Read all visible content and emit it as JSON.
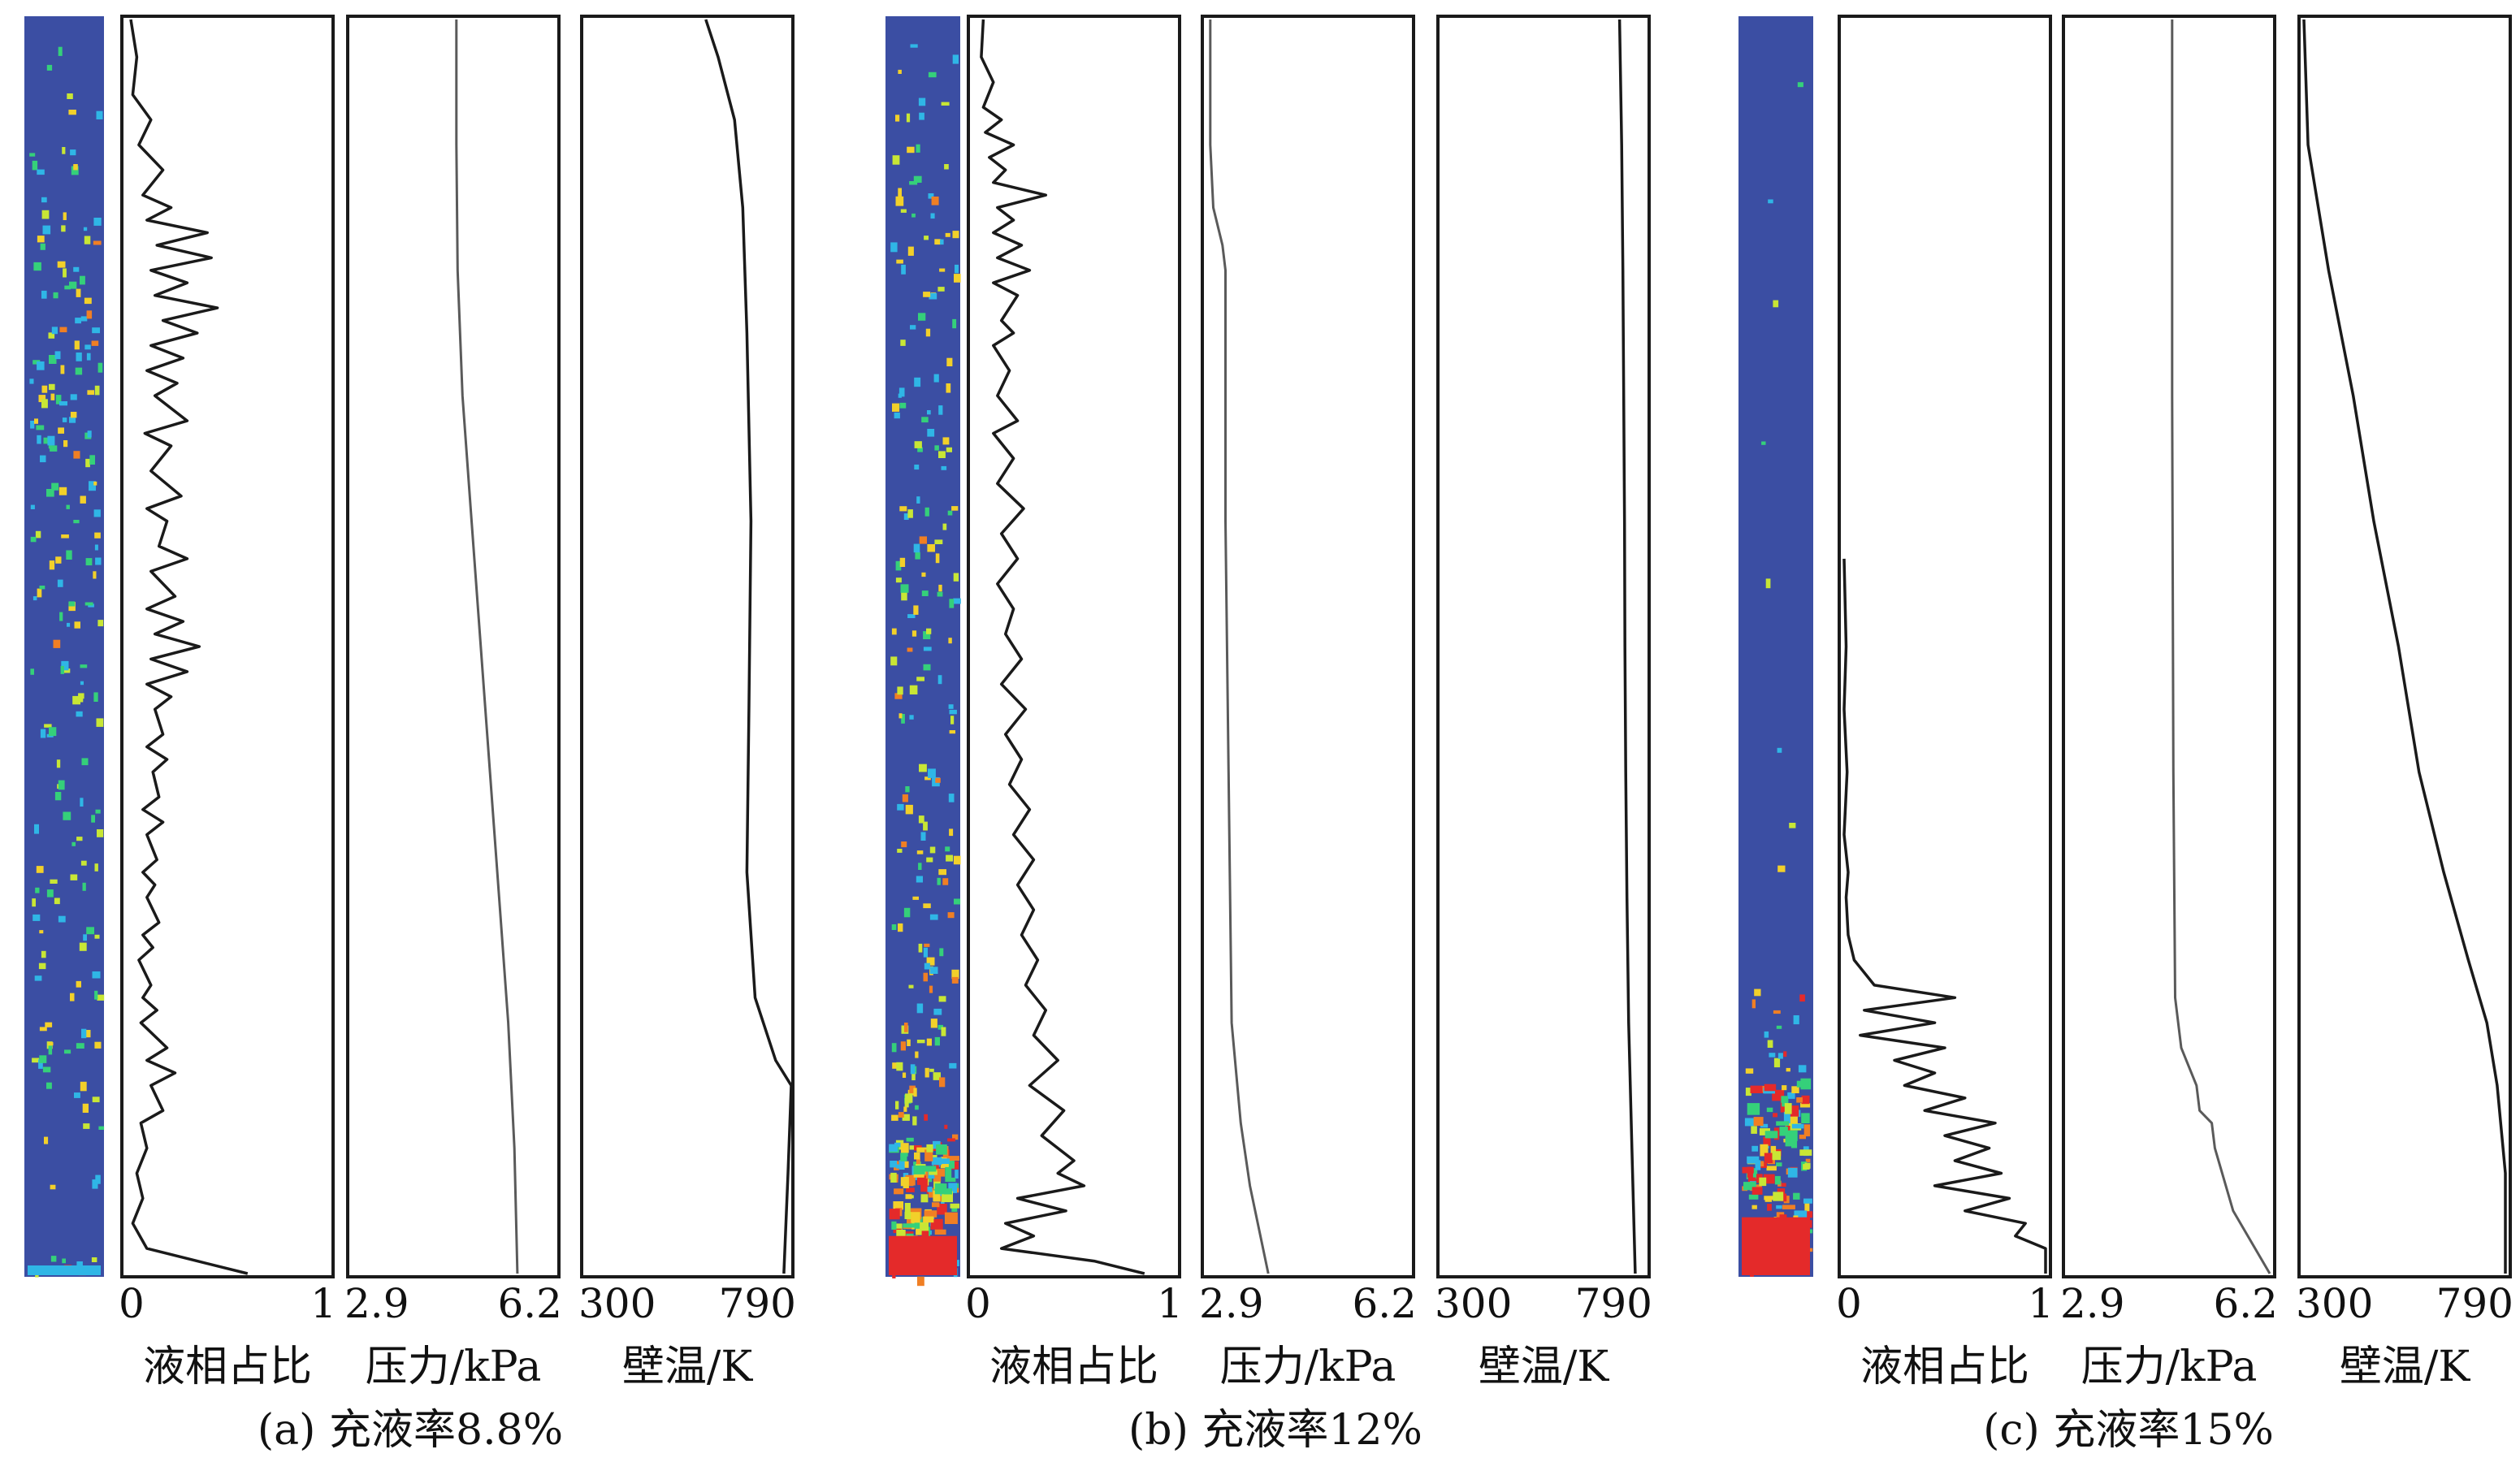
{
  "chart_data": [
    {
      "id": "a",
      "type": "line",
      "caption": "(a) 充液率8.8%",
      "fill_ratio_percent": 8.8,
      "contour_legend": "liquid volume fraction field (blue = 0, red = 1)",
      "panels": [
        {
          "key": "liquid",
          "xlabel": "液相占比",
          "tick_labels": [
            "0",
            "1"
          ],
          "xlim": [
            0,
            1
          ],
          "series_name": "liquid fraction",
          "points": [
            [
              0.02,
              1.0
            ],
            [
              0.05,
              0.97
            ],
            [
              0.03,
              0.94
            ],
            [
              0.12,
              0.92
            ],
            [
              0.06,
              0.9
            ],
            [
              0.18,
              0.88
            ],
            [
              0.08,
              0.86
            ],
            [
              0.22,
              0.85
            ],
            [
              0.1,
              0.84
            ],
            [
              0.4,
              0.83
            ],
            [
              0.15,
              0.82
            ],
            [
              0.42,
              0.81
            ],
            [
              0.12,
              0.8
            ],
            [
              0.3,
              0.79
            ],
            [
              0.14,
              0.78
            ],
            [
              0.45,
              0.77
            ],
            [
              0.18,
              0.76
            ],
            [
              0.35,
              0.75
            ],
            [
              0.12,
              0.74
            ],
            [
              0.28,
              0.73
            ],
            [
              0.1,
              0.72
            ],
            [
              0.25,
              0.71
            ],
            [
              0.14,
              0.7
            ],
            [
              0.3,
              0.68
            ],
            [
              0.09,
              0.67
            ],
            [
              0.22,
              0.66
            ],
            [
              0.12,
              0.64
            ],
            [
              0.27,
              0.62
            ],
            [
              0.1,
              0.61
            ],
            [
              0.2,
              0.6
            ],
            [
              0.16,
              0.58
            ],
            [
              0.3,
              0.57
            ],
            [
              0.12,
              0.56
            ],
            [
              0.24,
              0.54
            ],
            [
              0.1,
              0.53
            ],
            [
              0.28,
              0.52
            ],
            [
              0.14,
              0.51
            ],
            [
              0.36,
              0.5
            ],
            [
              0.12,
              0.49
            ],
            [
              0.3,
              0.48
            ],
            [
              0.1,
              0.47
            ],
            [
              0.22,
              0.46
            ],
            [
              0.14,
              0.45
            ],
            [
              0.18,
              0.43
            ],
            [
              0.1,
              0.42
            ],
            [
              0.2,
              0.41
            ],
            [
              0.13,
              0.4
            ],
            [
              0.16,
              0.38
            ],
            [
              0.08,
              0.37
            ],
            [
              0.18,
              0.36
            ],
            [
              0.1,
              0.35
            ],
            [
              0.15,
              0.33
            ],
            [
              0.08,
              0.32
            ],
            [
              0.14,
              0.31
            ],
            [
              0.1,
              0.3
            ],
            [
              0.16,
              0.28
            ],
            [
              0.08,
              0.27
            ],
            [
              0.13,
              0.26
            ],
            [
              0.06,
              0.25
            ],
            [
              0.12,
              0.23
            ],
            [
              0.08,
              0.22
            ],
            [
              0.15,
              0.21
            ],
            [
              0.07,
              0.2
            ],
            [
              0.2,
              0.18
            ],
            [
              0.1,
              0.17
            ],
            [
              0.24,
              0.16
            ],
            [
              0.12,
              0.15
            ],
            [
              0.18,
              0.13
            ],
            [
              0.07,
              0.12
            ],
            [
              0.1,
              0.1
            ],
            [
              0.05,
              0.08
            ],
            [
              0.08,
              0.06
            ],
            [
              0.03,
              0.04
            ],
            [
              0.1,
              0.02
            ],
            [
              0.35,
              0.01
            ],
            [
              0.6,
              0.0
            ]
          ]
        },
        {
          "key": "pressure",
          "xlabel": "压力/kPa",
          "tick_labels": [
            "2.9",
            "6.2"
          ],
          "xlim": [
            2.9,
            6.2
          ],
          "series_name": "pressure",
          "points": [
            [
              4.6,
              1.0
            ],
            [
              4.6,
              0.9
            ],
            [
              4.62,
              0.8
            ],
            [
              4.7,
              0.7
            ],
            [
              4.85,
              0.6
            ],
            [
              5.0,
              0.5
            ],
            [
              5.15,
              0.4
            ],
            [
              5.3,
              0.3
            ],
            [
              5.45,
              0.2
            ],
            [
              5.55,
              0.1
            ],
            [
              5.6,
              0.0
            ]
          ]
        },
        {
          "key": "wall_temp",
          "xlabel": "壁温/K",
          "tick_labels": [
            "300",
            "790"
          ],
          "xlim": [
            300,
            790
          ],
          "series_name": "wall temperature",
          "points": [
            [
              590,
              1.0
            ],
            [
              620,
              0.97
            ],
            [
              660,
              0.92
            ],
            [
              680,
              0.85
            ],
            [
              690,
              0.75
            ],
            [
              700,
              0.6
            ],
            [
              695,
              0.45
            ],
            [
              690,
              0.32
            ],
            [
              710,
              0.22
            ],
            [
              760,
              0.17
            ],
            [
              798,
              0.15
            ],
            [
              790,
              0.08
            ],
            [
              780,
              0.0
            ]
          ]
        }
      ]
    },
    {
      "id": "b",
      "type": "line",
      "caption": "(b) 充液率12%",
      "fill_ratio_percent": 12,
      "contour_legend": "liquid volume fraction field (blue = 0, red = 1)",
      "panels": [
        {
          "key": "liquid",
          "xlabel": "液相占比",
          "tick_labels": [
            "0",
            "1"
          ],
          "xlim": [
            0,
            1
          ],
          "series_name": "liquid fraction",
          "points": [
            [
              0.05,
              1.0
            ],
            [
              0.04,
              0.97
            ],
            [
              0.1,
              0.95
            ],
            [
              0.05,
              0.93
            ],
            [
              0.14,
              0.92
            ],
            [
              0.06,
              0.91
            ],
            [
              0.2,
              0.9
            ],
            [
              0.08,
              0.89
            ],
            [
              0.16,
              0.88
            ],
            [
              0.1,
              0.87
            ],
            [
              0.36,
              0.86
            ],
            [
              0.12,
              0.85
            ],
            [
              0.2,
              0.84
            ],
            [
              0.1,
              0.83
            ],
            [
              0.24,
              0.82
            ],
            [
              0.12,
              0.81
            ],
            [
              0.28,
              0.8
            ],
            [
              0.1,
              0.79
            ],
            [
              0.22,
              0.78
            ],
            [
              0.14,
              0.76
            ],
            [
              0.2,
              0.75
            ],
            [
              0.1,
              0.74
            ],
            [
              0.18,
              0.72
            ],
            [
              0.12,
              0.7
            ],
            [
              0.22,
              0.68
            ],
            [
              0.1,
              0.67
            ],
            [
              0.2,
              0.65
            ],
            [
              0.12,
              0.63
            ],
            [
              0.25,
              0.61
            ],
            [
              0.14,
              0.59
            ],
            [
              0.22,
              0.57
            ],
            [
              0.12,
              0.55
            ],
            [
              0.2,
              0.53
            ],
            [
              0.16,
              0.51
            ],
            [
              0.24,
              0.49
            ],
            [
              0.14,
              0.47
            ],
            [
              0.26,
              0.45
            ],
            [
              0.16,
              0.43
            ],
            [
              0.24,
              0.41
            ],
            [
              0.18,
              0.39
            ],
            [
              0.28,
              0.37
            ],
            [
              0.2,
              0.35
            ],
            [
              0.3,
              0.33
            ],
            [
              0.22,
              0.31
            ],
            [
              0.3,
              0.29
            ],
            [
              0.24,
              0.27
            ],
            [
              0.32,
              0.25
            ],
            [
              0.26,
              0.23
            ],
            [
              0.36,
              0.21
            ],
            [
              0.3,
              0.19
            ],
            [
              0.42,
              0.17
            ],
            [
              0.28,
              0.15
            ],
            [
              0.45,
              0.13
            ],
            [
              0.34,
              0.11
            ],
            [
              0.5,
              0.09
            ],
            [
              0.42,
              0.08
            ],
            [
              0.55,
              0.07
            ],
            [
              0.22,
              0.06
            ],
            [
              0.46,
              0.05
            ],
            [
              0.16,
              0.04
            ],
            [
              0.3,
              0.03
            ],
            [
              0.14,
              0.02
            ],
            [
              0.6,
              0.01
            ],
            [
              0.85,
              0.0
            ]
          ]
        },
        {
          "key": "pressure",
          "xlabel": "压力/kPa",
          "tick_labels": [
            "2.9",
            "6.2"
          ],
          "xlim": [
            2.9,
            6.2
          ],
          "series_name": "pressure",
          "points": [
            [
              2.95,
              1.0
            ],
            [
              2.95,
              0.9
            ],
            [
              3.0,
              0.85
            ],
            [
              3.15,
              0.82
            ],
            [
              3.2,
              0.8
            ],
            [
              3.2,
              0.6
            ],
            [
              3.25,
              0.4
            ],
            [
              3.3,
              0.2
            ],
            [
              3.45,
              0.12
            ],
            [
              3.6,
              0.07
            ],
            [
              3.9,
              0.0
            ]
          ]
        },
        {
          "key": "wall_temp",
          "xlabel": "壁温/K",
          "tick_labels": [
            "300",
            "790"
          ],
          "xlim": [
            300,
            790
          ],
          "series_name": "wall temperature",
          "points": [
            [
              730,
              1.0
            ],
            [
              735,
              0.9
            ],
            [
              738,
              0.8
            ],
            [
              740,
              0.7
            ],
            [
              742,
              0.6
            ],
            [
              743,
              0.5
            ],
            [
              745,
              0.4
            ],
            [
              748,
              0.3
            ],
            [
              752,
              0.2
            ],
            [
              760,
              0.1
            ],
            [
              768,
              0.0
            ]
          ]
        }
      ]
    },
    {
      "id": "c",
      "type": "line",
      "caption": "(c) 充液率15%",
      "fill_ratio_percent": 15,
      "contour_legend": "liquid volume fraction field (blue = 0, red = 1)",
      "panels": [
        {
          "key": "liquid",
          "xlabel": "液相占比",
          "tick_labels": [
            "0",
            "1"
          ],
          "xlim": [
            0,
            1
          ],
          "series_name": "liquid fraction",
          "points": [
            [
              0.0,
              0.57
            ],
            [
              0.01,
              0.5
            ],
            [
              0.0,
              0.45
            ],
            [
              0.015,
              0.4
            ],
            [
              0.0,
              0.35
            ],
            [
              0.02,
              0.32
            ],
            [
              0.01,
              0.3
            ],
            [
              0.02,
              0.27
            ],
            [
              0.05,
              0.25
            ],
            [
              0.15,
              0.23
            ],
            [
              0.55,
              0.22
            ],
            [
              0.1,
              0.21
            ],
            [
              0.45,
              0.2
            ],
            [
              0.08,
              0.19
            ],
            [
              0.5,
              0.18
            ],
            [
              0.25,
              0.17
            ],
            [
              0.45,
              0.16
            ],
            [
              0.3,
              0.15
            ],
            [
              0.6,
              0.14
            ],
            [
              0.4,
              0.13
            ],
            [
              0.75,
              0.12
            ],
            [
              0.5,
              0.11
            ],
            [
              0.72,
              0.1
            ],
            [
              0.55,
              0.09
            ],
            [
              0.78,
              0.08
            ],
            [
              0.45,
              0.07
            ],
            [
              0.82,
              0.06
            ],
            [
              0.6,
              0.05
            ],
            [
              0.9,
              0.04
            ],
            [
              0.85,
              0.03
            ],
            [
              1.0,
              0.02
            ],
            [
              1.0,
              0.0
            ]
          ]
        },
        {
          "key": "pressure",
          "xlabel": "压力/kPa",
          "tick_labels": [
            "2.9",
            "6.2"
          ],
          "xlim": [
            2.9,
            6.2
          ],
          "series_name": "pressure",
          "points": [
            [
              4.6,
              1.0
            ],
            [
              4.6,
              0.7
            ],
            [
              4.62,
              0.4
            ],
            [
              4.65,
              0.22
            ],
            [
              4.75,
              0.18
            ],
            [
              5.0,
              0.15
            ],
            [
              5.05,
              0.13
            ],
            [
              5.25,
              0.12
            ],
            [
              5.3,
              0.1
            ],
            [
              5.6,
              0.05
            ],
            [
              6.2,
              0.0
            ]
          ]
        },
        {
          "key": "wall_temp",
          "xlabel": "壁温/K",
          "tick_labels": [
            "300",
            "790"
          ],
          "xlim": [
            300,
            790
          ],
          "series_name": "wall temperature",
          "points": [
            [
              300,
              1.0
            ],
            [
              310,
              0.9
            ],
            [
              360,
              0.8
            ],
            [
              420,
              0.7
            ],
            [
              470,
              0.6
            ],
            [
              530,
              0.5
            ],
            [
              580,
              0.4
            ],
            [
              640,
              0.32
            ],
            [
              700,
              0.25
            ],
            [
              745,
              0.2
            ],
            [
              770,
              0.15
            ],
            [
              790,
              0.08
            ],
            [
              790,
              0.0
            ]
          ]
        }
      ]
    }
  ]
}
